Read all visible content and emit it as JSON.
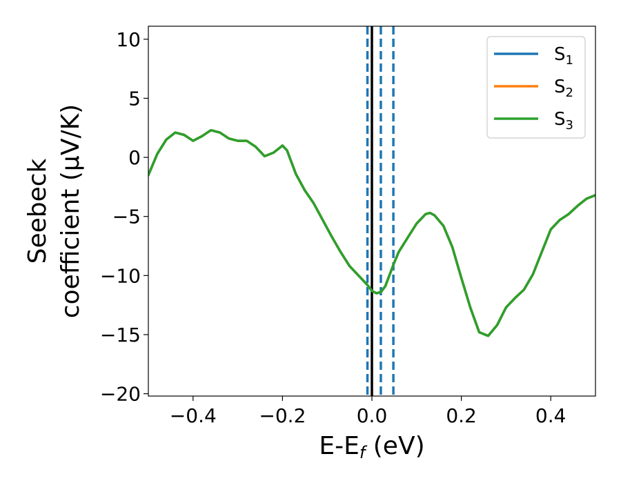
{
  "chart_data": {
    "type": "line",
    "title": "",
    "xlabel": "E-E",
    "xlabel_sub": "f",
    "xlabel_unit": " (eV)",
    "ylabel_line1": "Seebeck",
    "ylabel_line2": "coefficient  (μV/K)",
    "xlim": [
      -0.5,
      0.5
    ],
    "ylim": [
      -20.2,
      11.1
    ],
    "xticks": [
      -0.4,
      -0.2,
      0.0,
      0.2,
      0.4
    ],
    "xtick_labels": [
      "−0.4",
      "−0.2",
      "0.0",
      "0.2",
      "0.4"
    ],
    "yticks": [
      10,
      5,
      0,
      -5,
      -10,
      -15,
      -20
    ],
    "ytick_labels": [
      "10",
      "5",
      "0",
      "−5",
      "−10",
      "−15",
      "−20"
    ],
    "grid": false,
    "legend_position": "top-right",
    "series": [
      {
        "name": "S",
        "sub": "1",
        "color": "#1f77b4",
        "x": [
          -0.5,
          -0.48,
          -0.46,
          -0.44,
          -0.42,
          -0.4,
          -0.38,
          -0.36,
          -0.34,
          -0.32,
          -0.3,
          -0.28,
          -0.26,
          -0.24,
          -0.22,
          -0.2,
          -0.19,
          -0.17,
          -0.15,
          -0.13,
          -0.11,
          -0.09,
          -0.07,
          -0.05,
          -0.03,
          -0.01,
          0.0,
          0.01,
          0.02,
          0.03,
          0.04,
          0.05,
          0.06,
          0.08,
          0.1,
          0.12,
          0.13,
          0.14,
          0.16,
          0.18,
          0.2,
          0.22,
          0.24,
          0.26,
          0.28,
          0.3,
          0.32,
          0.34,
          0.36,
          0.38,
          0.4,
          0.42,
          0.44,
          0.46,
          0.48,
          0.5
        ],
        "y": [
          -1.5,
          0.3,
          1.5,
          2.1,
          1.9,
          1.4,
          1.8,
          2.3,
          2.1,
          1.6,
          1.4,
          1.4,
          0.9,
          0.1,
          0.4,
          1.0,
          0.6,
          -1.4,
          -2.8,
          -3.9,
          -5.3,
          -6.7,
          -8.0,
          -9.2,
          -10.0,
          -10.8,
          -11.3,
          -11.5,
          -11.4,
          -10.9,
          -9.9,
          -8.9,
          -8.0,
          -6.8,
          -5.6,
          -4.8,
          -4.7,
          -4.9,
          -5.8,
          -7.6,
          -10.2,
          -12.7,
          -14.8,
          -15.1,
          -14.2,
          -12.7,
          -11.9,
          -11.2,
          -9.9,
          -8.0,
          -6.1,
          -5.3,
          -4.8,
          -4.1,
          -3.5,
          -3.2
        ]
      },
      {
        "name": "S",
        "sub": "2",
        "color": "#ff7f0e",
        "x": [
          -0.5,
          -0.48,
          -0.46,
          -0.44,
          -0.42,
          -0.4,
          -0.38,
          -0.36,
          -0.34,
          -0.32,
          -0.3,
          -0.28,
          -0.26,
          -0.24,
          -0.22,
          -0.2,
          -0.19,
          -0.17,
          -0.15,
          -0.13,
          -0.11,
          -0.09,
          -0.07,
          -0.05,
          -0.03,
          -0.01,
          0.0,
          0.01,
          0.02,
          0.03,
          0.04,
          0.05,
          0.06,
          0.08,
          0.1,
          0.12,
          0.13,
          0.14,
          0.16,
          0.18,
          0.2,
          0.22,
          0.24,
          0.26,
          0.28,
          0.3,
          0.32,
          0.34,
          0.36,
          0.38,
          0.4,
          0.42,
          0.44,
          0.46,
          0.48,
          0.5
        ],
        "y": [
          -1.5,
          0.3,
          1.5,
          2.1,
          1.9,
          1.4,
          1.8,
          2.3,
          2.1,
          1.6,
          1.4,
          1.4,
          0.9,
          0.1,
          0.4,
          1.0,
          0.6,
          -1.4,
          -2.8,
          -3.9,
          -5.3,
          -6.7,
          -8.0,
          -9.2,
          -10.0,
          -10.8,
          -11.3,
          -11.5,
          -11.4,
          -10.9,
          -9.9,
          -8.9,
          -8.0,
          -6.8,
          -5.6,
          -4.8,
          -4.7,
          -4.9,
          -5.8,
          -7.6,
          -10.2,
          -12.7,
          -14.8,
          -15.1,
          -14.2,
          -12.7,
          -11.9,
          -11.2,
          -9.9,
          -8.0,
          -6.1,
          -5.3,
          -4.8,
          -4.1,
          -3.5,
          -3.2
        ]
      },
      {
        "name": "S",
        "sub": "3",
        "color": "#2ca02c",
        "x": [
          -0.5,
          -0.48,
          -0.46,
          -0.44,
          -0.42,
          -0.4,
          -0.38,
          -0.36,
          -0.34,
          -0.32,
          -0.3,
          -0.28,
          -0.26,
          -0.24,
          -0.22,
          -0.2,
          -0.19,
          -0.17,
          -0.15,
          -0.13,
          -0.11,
          -0.09,
          -0.07,
          -0.05,
          -0.03,
          -0.01,
          0.0,
          0.01,
          0.02,
          0.03,
          0.04,
          0.05,
          0.06,
          0.08,
          0.1,
          0.12,
          0.13,
          0.14,
          0.16,
          0.18,
          0.2,
          0.22,
          0.24,
          0.26,
          0.28,
          0.3,
          0.32,
          0.34,
          0.36,
          0.38,
          0.4,
          0.42,
          0.44,
          0.46,
          0.48,
          0.5
        ],
        "y": [
          -1.5,
          0.3,
          1.5,
          2.1,
          1.9,
          1.4,
          1.8,
          2.3,
          2.1,
          1.6,
          1.4,
          1.4,
          0.9,
          0.1,
          0.4,
          1.0,
          0.6,
          -1.4,
          -2.8,
          -3.9,
          -5.3,
          -6.7,
          -8.0,
          -9.2,
          -10.0,
          -10.8,
          -11.3,
          -11.5,
          -11.4,
          -10.9,
          -9.9,
          -8.9,
          -8.0,
          -6.8,
          -5.6,
          -4.8,
          -4.7,
          -4.9,
          -5.8,
          -7.6,
          -10.2,
          -12.7,
          -14.8,
          -15.1,
          -14.2,
          -12.7,
          -11.9,
          -11.2,
          -9.9,
          -8.0,
          -6.1,
          -5.3,
          -4.8,
          -4.1,
          -3.5,
          -3.2
        ]
      }
    ],
    "vertical_lines": [
      {
        "x": -0.01,
        "style": "dashed",
        "color": "#1f77b4"
      },
      {
        "x": 0.02,
        "style": "dashed",
        "color": "#1f77b4"
      },
      {
        "x": 0.048,
        "style": "dashed",
        "color": "#1f77b4"
      },
      {
        "x": 0.0,
        "style": "solid",
        "color": "#000000"
      }
    ]
  }
}
